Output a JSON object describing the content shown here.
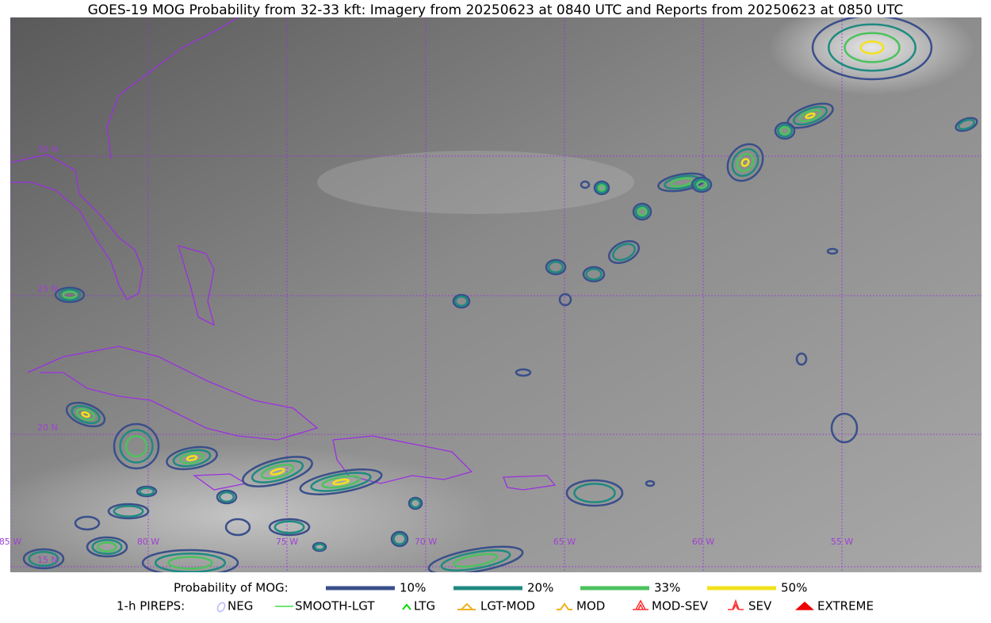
{
  "title": "GOES-19 MOG Probability from 32-33 kft: Imagery from 20250623 at 0840 UTC and Reports from 20250623 at 0850 UTC",
  "map": {
    "lat_labels": [
      "30 N",
      "25 N",
      "20 N",
      "15 N"
    ],
    "lon_labels": [
      "85 W",
      "80 W",
      "75 W",
      "70 W",
      "65 W",
      "60 W",
      "55 W"
    ]
  },
  "legend": {
    "probability": {
      "label": "Probability of MOG:",
      "levels": [
        {
          "name": "10%",
          "color": "#3a4f8a"
        },
        {
          "name": "20%",
          "color": "#1f8a80"
        },
        {
          "name": "33%",
          "color": "#4cc25e"
        },
        {
          "name": "50%",
          "color": "#f2e21c"
        }
      ]
    },
    "pireps": {
      "label": "1-h PIREPS:",
      "items": [
        {
          "name": "NEG",
          "color": "#b8b8ff"
        },
        {
          "name": "SMOOTH-LGT",
          "color": "#44dd44"
        },
        {
          "name": "LTG",
          "color": "#00dd00"
        },
        {
          "name": "LGT-MOD",
          "color": "#f0b020"
        },
        {
          "name": "MOD",
          "color": "#f0b020"
        },
        {
          "name": "MOD-SEV",
          "color": "#ff3030"
        },
        {
          "name": "SEV",
          "color": "#ff3030"
        },
        {
          "name": "EXTREME",
          "color": "#ee0000"
        }
      ]
    }
  }
}
